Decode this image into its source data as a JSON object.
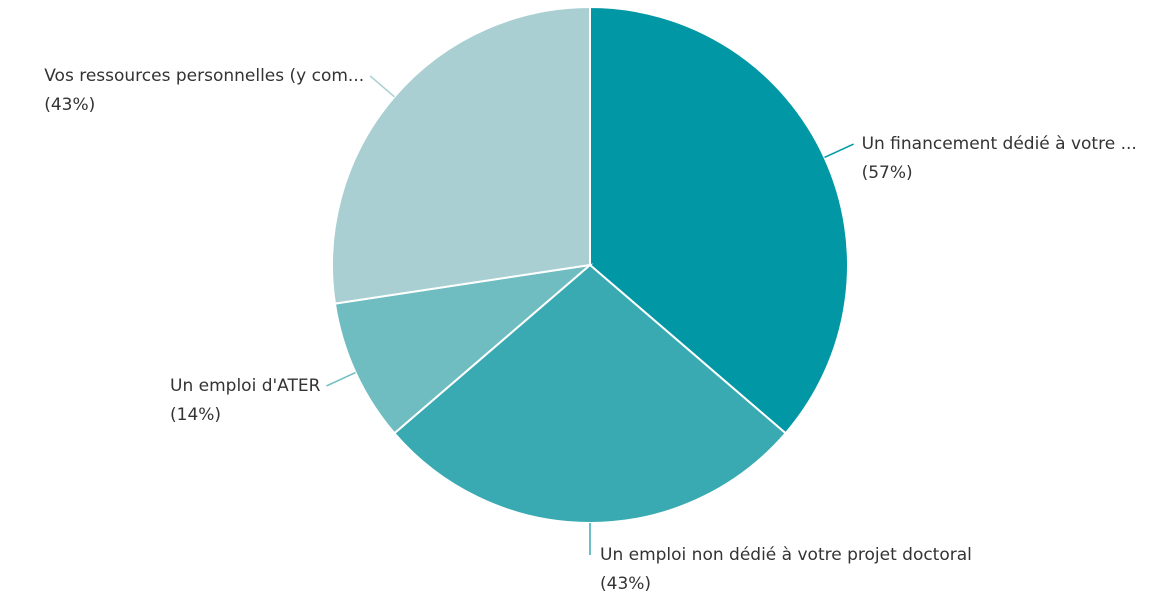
{
  "chart_data": {
    "type": "pie",
    "categories": [
      "Un financement dédié à votre ...",
      "Un emploi non dédié à votre projet doctoral",
      "Un emploi d'ATER",
      "Vos ressources personnelles (y com..."
    ],
    "values": [
      57,
      43,
      14,
      43
    ],
    "value_labels": [
      "(57%)",
      "(43%)",
      "(14%)",
      "(43%)"
    ],
    "colors": [
      "#0197a5",
      "#39aab2",
      "#70bdc1",
      "#a9cfd2"
    ]
  }
}
